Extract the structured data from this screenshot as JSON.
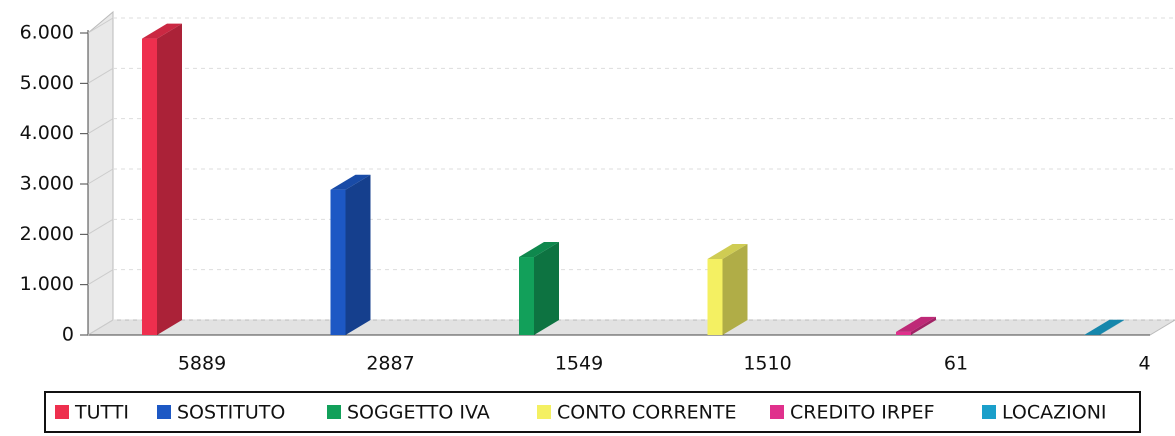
{
  "chart_data": {
    "type": "bar3d",
    "categories": [
      "TUTTI",
      "SOSTITUTO",
      "SOGGETTO IVA",
      "CONTO CORRENTE",
      "CREDITO IRPEF",
      "LOCAZIONI"
    ],
    "values": [
      5889,
      2887,
      1549,
      1510,
      61,
      4
    ],
    "colors": [
      "#ee2f4e",
      "#1d58c4",
      "#12a05a",
      "#f4f062",
      "#e0308c",
      "#1a9fca"
    ],
    "ylim": [
      0,
      6000
    ],
    "yticks": [
      0,
      {
        "value": 1000,
        "label": "1.000"
      },
      {
        "value": 2000,
        "label": "2.000"
      },
      {
        "value": 3000,
        "label": "3.000"
      },
      {
        "value": 4000,
        "label": "4.000"
      },
      {
        "value": 5000,
        "label": "5.000"
      },
      {
        "value": 6000,
        "label": "6.000"
      }
    ],
    "grid": true
  }
}
